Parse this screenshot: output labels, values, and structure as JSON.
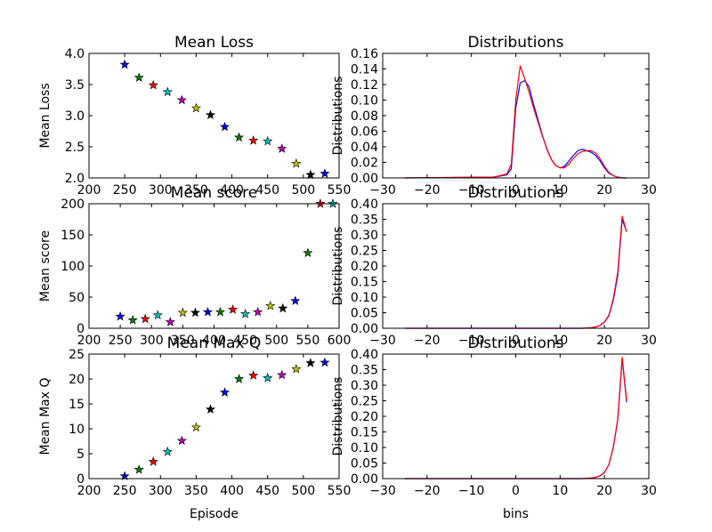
{
  "chart_data": [
    {
      "type": "scatter",
      "title": "Mean Loss",
      "xlabel": "",
      "ylabel": "Mean Loss",
      "xlim": [
        200,
        550
      ],
      "ylim": [
        2.0,
        4.0
      ],
      "xticks": [
        "200",
        "250",
        "300",
        "350",
        "400",
        "450",
        "500",
        "550"
      ],
      "yticks": [
        "2.0",
        "2.5",
        "3.0",
        "3.5",
        "4.0"
      ],
      "marker": "star",
      "x": [
        250,
        270,
        290,
        310,
        330,
        350,
        370,
        390,
        410,
        430,
        450,
        470,
        490,
        510,
        530
      ],
      "y": [
        3.82,
        3.61,
        3.49,
        3.38,
        3.25,
        3.12,
        3.01,
        2.82,
        2.65,
        2.6,
        2.59,
        2.47,
        2.23,
        2.05,
        2.07
      ],
      "colors": [
        "#0000ff",
        "#008000",
        "#ff0000",
        "#00bfbf",
        "#bf00bf",
        "#bfbf00",
        "#000000",
        "#0000ff",
        "#008000",
        "#ff0000",
        "#00bfbf",
        "#bf00bf",
        "#bfbf00",
        "#000000",
        "#0000ff"
      ]
    },
    {
      "type": "line",
      "title": "Distributions",
      "xlabel": "",
      "ylabel": "Distributions",
      "xlim": [
        -30,
        30
      ],
      "ylim": [
        0,
        0.16
      ],
      "xticks": [
        "−30",
        "−20",
        "−10",
        "0",
        "10",
        "20",
        "30"
      ],
      "yticks": [
        "0.00",
        "0.02",
        "0.04",
        "0.06",
        "0.08",
        "0.10",
        "0.12",
        "0.14",
        "0.16"
      ],
      "series": [
        {
          "color": "#0000ff",
          "x": [
            -25,
            -5,
            -2,
            -1,
            0,
            1,
            2,
            3,
            4,
            5,
            6,
            7,
            8,
            9,
            10,
            11,
            12,
            13,
            14,
            15,
            16,
            17,
            18,
            19,
            20,
            21,
            22,
            23,
            24,
            25
          ],
          "values": [
            0,
            0.001,
            0.004,
            0.012,
            0.09,
            0.122,
            0.125,
            0.117,
            0.095,
            0.075,
            0.055,
            0.037,
            0.024,
            0.016,
            0.013,
            0.015,
            0.022,
            0.029,
            0.035,
            0.037,
            0.035,
            0.033,
            0.029,
            0.022,
            0.013,
            0.006,
            0.003,
            0.001,
            0.0,
            0.0
          ]
        },
        {
          "color": "#ff0000",
          "x": [
            -25,
            -5,
            -2,
            -1,
            0,
            1,
            2,
            3,
            4,
            5,
            6,
            7,
            8,
            9,
            10,
            11,
            12,
            13,
            14,
            15,
            16,
            17,
            18,
            19,
            20,
            21,
            22,
            23,
            24,
            25
          ],
          "values": [
            0,
            0.001,
            0.005,
            0.018,
            0.1,
            0.144,
            0.128,
            0.11,
            0.09,
            0.072,
            0.054,
            0.038,
            0.024,
            0.016,
            0.013,
            0.013,
            0.018,
            0.025,
            0.031,
            0.034,
            0.035,
            0.035,
            0.032,
            0.025,
            0.015,
            0.007,
            0.003,
            0.001,
            0.0,
            0.0
          ]
        }
      ]
    },
    {
      "type": "scatter",
      "title": "Mean score",
      "xlabel": "",
      "ylabel": "Mean score",
      "xlim": [
        200,
        600
      ],
      "ylim": [
        0,
        200
      ],
      "xticks": [
        "200",
        "250",
        "300",
        "350",
        "400",
        "450",
        "500",
        "550",
        "600"
      ],
      "yticks": [
        "0",
        "50",
        "100",
        "150",
        "200"
      ],
      "marker": "star",
      "x": [
        250,
        270,
        290,
        310,
        330,
        350,
        370,
        390,
        410,
        430,
        450,
        470,
        490,
        510,
        530,
        550,
        570,
        590
      ],
      "y": [
        19,
        13,
        15,
        21,
        10,
        25,
        25,
        26,
        26,
        30,
        23,
        26,
        36,
        32,
        44,
        121,
        200,
        200
      ],
      "colors": [
        "#0000ff",
        "#008000",
        "#ff0000",
        "#00bfbf",
        "#bf00bf",
        "#bfbf00",
        "#000000",
        "#0000ff",
        "#008000",
        "#ff0000",
        "#00bfbf",
        "#bf00bf",
        "#bfbf00",
        "#000000",
        "#0000ff",
        "#008000",
        "#ff0000",
        "#00bfbf"
      ]
    },
    {
      "type": "line",
      "title": "Distributions",
      "xlabel": "",
      "ylabel": "Distributions",
      "xlim": [
        -30,
        30
      ],
      "ylim": [
        0,
        0.4
      ],
      "xticks": [
        "−30",
        "−20",
        "−10",
        "0",
        "10",
        "20",
        "30"
      ],
      "yticks": [
        "0.00",
        "0.05",
        "0.10",
        "0.15",
        "0.20",
        "0.25",
        "0.30",
        "0.35",
        "0.40"
      ],
      "series": [
        {
          "color": "#0000ff",
          "x": [
            -25,
            15,
            16,
            17,
            18,
            19,
            20,
            21,
            22,
            23,
            24,
            25
          ],
          "values": [
            0,
            0.0,
            0.001,
            0.002,
            0.004,
            0.009,
            0.02,
            0.04,
            0.09,
            0.17,
            0.35,
            0.31
          ]
        },
        {
          "color": "#ff0000",
          "x": [
            -25,
            15,
            16,
            17,
            18,
            19,
            20,
            21,
            22,
            23,
            24,
            25
          ],
          "values": [
            0,
            0.0,
            0.001,
            0.002,
            0.004,
            0.009,
            0.02,
            0.042,
            0.095,
            0.18,
            0.36,
            0.31
          ]
        }
      ]
    },
    {
      "type": "scatter",
      "title": "Mean Max Q",
      "xlabel": "Episode",
      "ylabel": "Mean Max Q",
      "xlim": [
        200,
        550
      ],
      "ylim": [
        0,
        25
      ],
      "xticks": [
        "200",
        "250",
        "300",
        "350",
        "400",
        "450",
        "500",
        "550"
      ],
      "yticks": [
        "0",
        "5",
        "10",
        "15",
        "20",
        "25"
      ],
      "marker": "star",
      "x": [
        250,
        270,
        290,
        310,
        330,
        350,
        370,
        390,
        410,
        430,
        450,
        470,
        490,
        510,
        530
      ],
      "y": [
        0.5,
        1.8,
        3.4,
        5.4,
        7.6,
        10.3,
        13.9,
        17.3,
        20.0,
        20.7,
        20.2,
        20.8,
        22.0,
        23.2,
        23.3
      ],
      "colors": [
        "#0000ff",
        "#008000",
        "#ff0000",
        "#00bfbf",
        "#bf00bf",
        "#bfbf00",
        "#000000",
        "#0000ff",
        "#008000",
        "#ff0000",
        "#00bfbf",
        "#bf00bf",
        "#bfbf00",
        "#000000",
        "#0000ff"
      ]
    },
    {
      "type": "line",
      "title": "Distributions",
      "xlabel": "bins",
      "ylabel": "Distributions",
      "xlim": [
        -30,
        30
      ],
      "ylim": [
        0,
        0.4
      ],
      "xticks": [
        "−30",
        "−20",
        "−10",
        "0",
        "10",
        "20",
        "30"
      ],
      "yticks": [
        "0.00",
        "0.05",
        "0.10",
        "0.15",
        "0.20",
        "0.25",
        "0.30",
        "0.35",
        "0.40"
      ],
      "series": [
        {
          "color": "#0000ff",
          "x": [
            -25,
            15,
            16,
            17,
            18,
            19,
            20,
            21,
            22,
            23,
            24,
            25
          ],
          "values": [
            0,
            0.0,
            0.001,
            0.002,
            0.004,
            0.009,
            0.02,
            0.045,
            0.1,
            0.19,
            0.385,
            0.245
          ]
        },
        {
          "color": "#ff0000",
          "x": [
            -25,
            15,
            16,
            17,
            18,
            19,
            20,
            21,
            22,
            23,
            24,
            25
          ],
          "values": [
            0,
            0.0,
            0.001,
            0.002,
            0.004,
            0.009,
            0.02,
            0.045,
            0.1,
            0.19,
            0.39,
            0.25
          ]
        }
      ]
    }
  ]
}
